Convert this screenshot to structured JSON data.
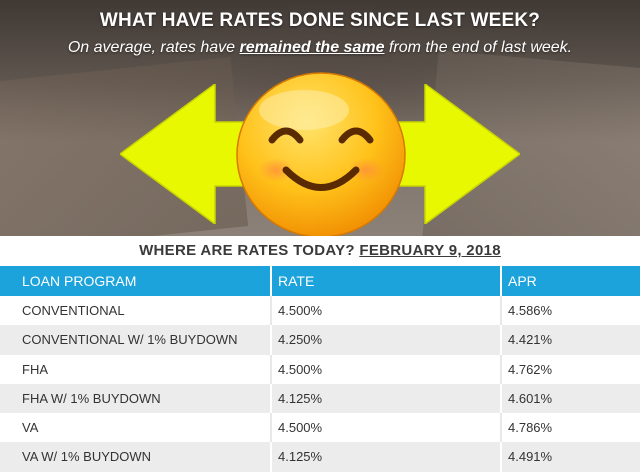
{
  "header": {
    "question": "WHAT HAVE RATES DONE SINCE LAST WEEK?",
    "answer_pre": "On average, rates have ",
    "answer_emphasis": "remained the same",
    "answer_post": " from the end of last week."
  },
  "graphic": {
    "arrow_icon": "double-headed-horizontal-arrow",
    "arrow_color": "#e8f800",
    "face_icon": "smiling-face-emoji",
    "face_color": "#ffc21a"
  },
  "rates_heading": {
    "label": "WHERE ARE RATES TODAY? ",
    "date": "FEBRUARY 9, 2018"
  },
  "table": {
    "accent_color": "#1ca3dc",
    "headers": [
      "LOAN PROGRAM",
      "RATE",
      "APR"
    ],
    "rows": [
      {
        "program": "CONVENTIONAL",
        "rate": "4.500%",
        "apr": "4.586%"
      },
      {
        "program": "CONVENTIONAL W/ 1% BUYDOWN",
        "rate": "4.250%",
        "apr": "4.421%"
      },
      {
        "program": "FHA",
        "rate": "4.500%",
        "apr": "4.762%"
      },
      {
        "program": "FHA W/ 1% BUYDOWN",
        "rate": "4.125%",
        "apr": "4.601%"
      },
      {
        "program": "VA",
        "rate": "4.500%",
        "apr": "4.786%"
      },
      {
        "program": "VA W/ 1% BUYDOWN",
        "rate": "4.125%",
        "apr": "4.491%"
      }
    ]
  }
}
